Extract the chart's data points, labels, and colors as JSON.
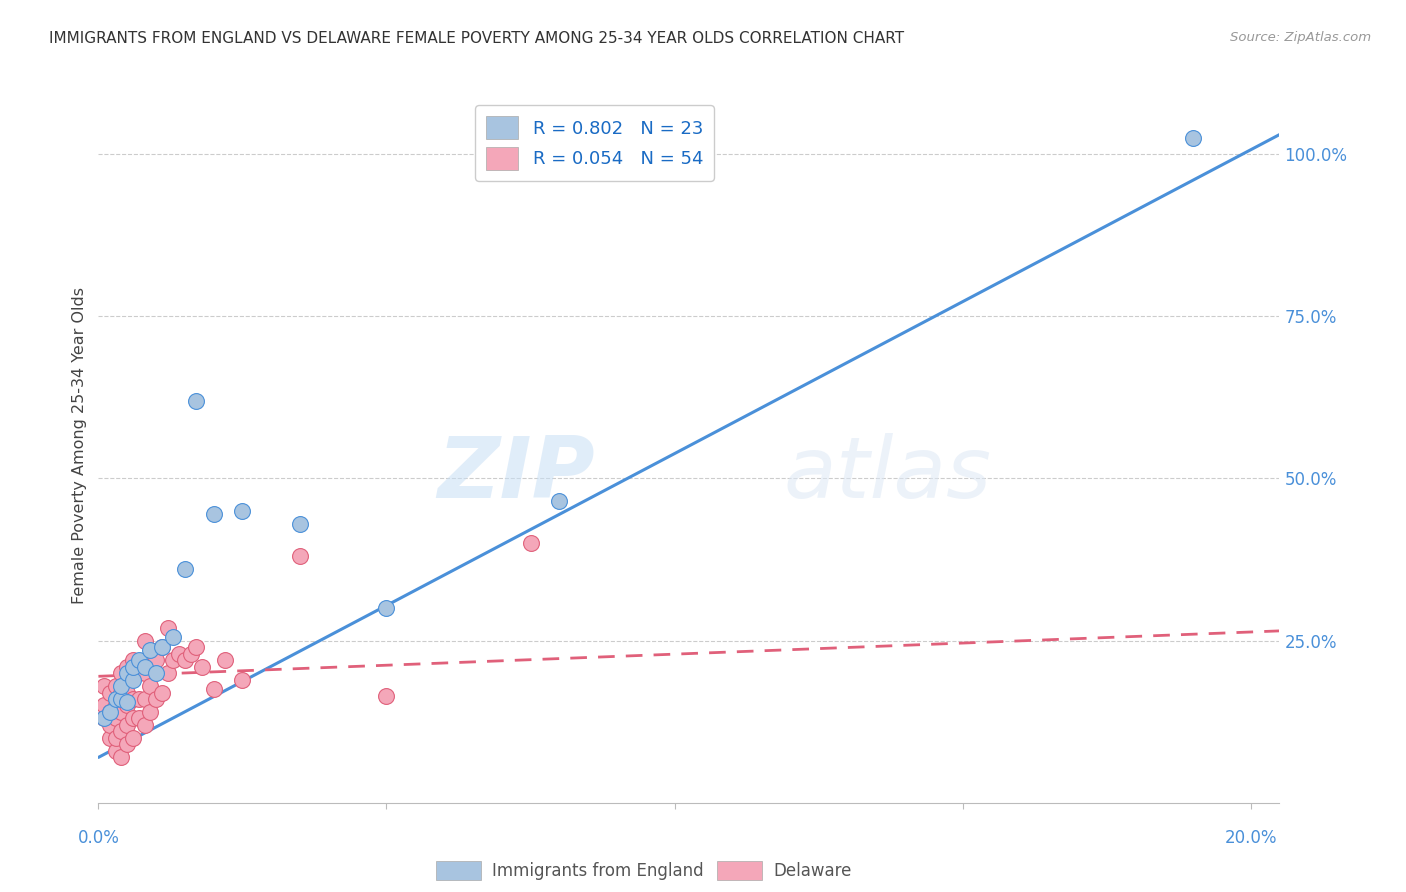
{
  "title": "IMMIGRANTS FROM ENGLAND VS DELAWARE FEMALE POVERTY AMONG 25-34 YEAR OLDS CORRELATION CHART",
  "source": "Source: ZipAtlas.com",
  "ylabel": "Female Poverty Among 25-34 Year Olds",
  "ylabel_right_ticks": [
    "100.0%",
    "75.0%",
    "50.0%",
    "25.0%"
  ],
  "ylabel_right_vals": [
    1.0,
    0.75,
    0.5,
    0.25
  ],
  "legend1_label": "Immigrants from England",
  "legend2_label": "Delaware",
  "R1": 0.802,
  "N1": 23,
  "R2": 0.054,
  "N2": 54,
  "color_blue": "#a8c4e0",
  "color_blue_line": "#4a90d9",
  "color_pink": "#f4a7b9",
  "color_pink_line": "#e0607a",
  "watermark_zip": "ZIP",
  "watermark_atlas": "atlas",
  "blue_scatter_x": [
    0.001,
    0.002,
    0.003,
    0.004,
    0.004,
    0.005,
    0.005,
    0.006,
    0.006,
    0.007,
    0.008,
    0.009,
    0.01,
    0.011,
    0.013,
    0.015,
    0.017,
    0.02,
    0.025,
    0.035,
    0.05,
    0.08,
    0.19
  ],
  "blue_scatter_y": [
    0.13,
    0.14,
    0.16,
    0.16,
    0.18,
    0.155,
    0.2,
    0.19,
    0.21,
    0.22,
    0.21,
    0.235,
    0.2,
    0.24,
    0.255,
    0.36,
    0.62,
    0.445,
    0.45,
    0.43,
    0.3,
    0.465,
    1.025
  ],
  "pink_scatter_x": [
    0.001,
    0.001,
    0.001,
    0.002,
    0.002,
    0.002,
    0.002,
    0.003,
    0.003,
    0.003,
    0.003,
    0.003,
    0.004,
    0.004,
    0.004,
    0.004,
    0.004,
    0.005,
    0.005,
    0.005,
    0.005,
    0.005,
    0.006,
    0.006,
    0.006,
    0.006,
    0.007,
    0.007,
    0.007,
    0.008,
    0.008,
    0.008,
    0.008,
    0.009,
    0.009,
    0.009,
    0.01,
    0.01,
    0.011,
    0.011,
    0.012,
    0.012,
    0.013,
    0.014,
    0.015,
    0.016,
    0.017,
    0.018,
    0.02,
    0.022,
    0.025,
    0.035,
    0.05,
    0.075
  ],
  "pink_scatter_y": [
    0.13,
    0.15,
    0.18,
    0.1,
    0.12,
    0.14,
    0.17,
    0.08,
    0.1,
    0.13,
    0.15,
    0.18,
    0.07,
    0.11,
    0.14,
    0.17,
    0.2,
    0.09,
    0.12,
    0.15,
    0.17,
    0.21,
    0.1,
    0.13,
    0.16,
    0.22,
    0.13,
    0.16,
    0.2,
    0.12,
    0.16,
    0.2,
    0.25,
    0.14,
    0.18,
    0.22,
    0.16,
    0.22,
    0.17,
    0.24,
    0.2,
    0.27,
    0.22,
    0.23,
    0.22,
    0.23,
    0.24,
    0.21,
    0.175,
    0.22,
    0.19,
    0.38,
    0.165,
    0.4
  ],
  "xlim": [
    0.0,
    0.205
  ],
  "ylim": [
    0.0,
    1.1
  ],
  "blue_line_x": [
    0.0,
    0.205
  ],
  "blue_line_y": [
    0.07,
    1.03
  ],
  "pink_line_x": [
    0.0,
    0.205
  ],
  "pink_line_y": [
    0.195,
    0.265
  ],
  "xtick_positions": [
    0.0,
    0.05,
    0.1,
    0.15,
    0.2
  ],
  "ytick_grid_positions": [
    0.25,
    0.5,
    0.75,
    1.0
  ],
  "background_color": "#ffffff"
}
